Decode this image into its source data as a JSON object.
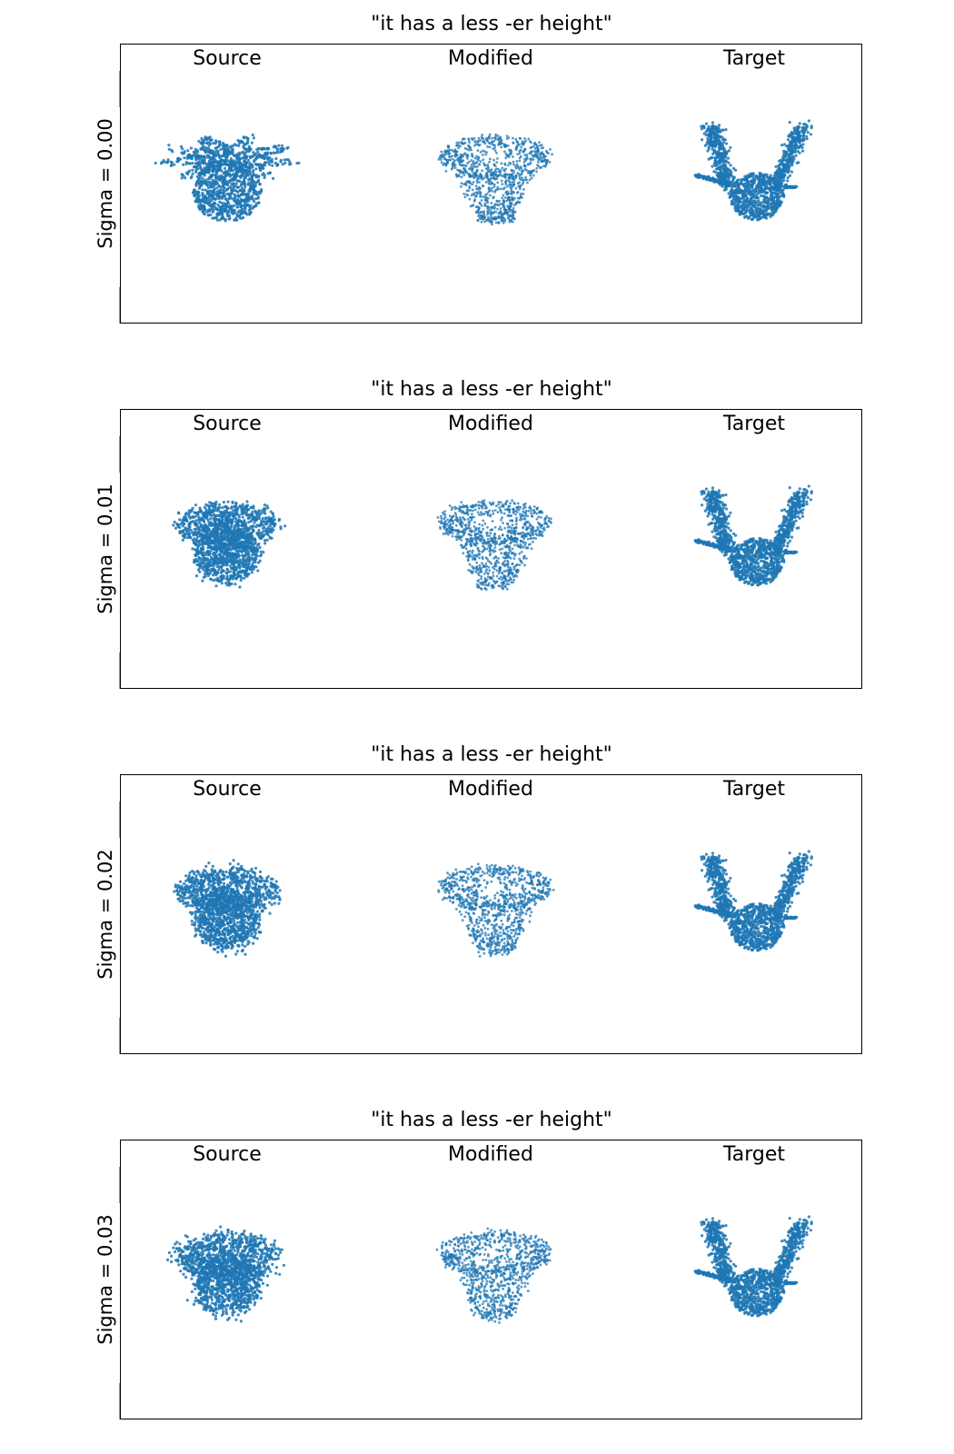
{
  "chart_data": {
    "type": "scatter",
    "panels": [
      {
        "title": "\"it has a less -er height\"",
        "row_label": "Sigma = 0.00",
        "sigma": 0.0
      },
      {
        "title": "\"it has a less -er height\"",
        "row_label": "Sigma = 0.01",
        "sigma": 0.01
      },
      {
        "title": "\"it has a less -er height\"",
        "row_label": "Sigma = 0.02",
        "sigma": 0.02
      },
      {
        "title": "\"it has a less -er height\"",
        "row_label": "Sigma = 0.03",
        "sigma": 0.03
      }
    ],
    "columns": [
      "Source",
      "Modified",
      "Target"
    ],
    "marker_color": "#1f77b4",
    "grid": false,
    "ticks": false
  }
}
